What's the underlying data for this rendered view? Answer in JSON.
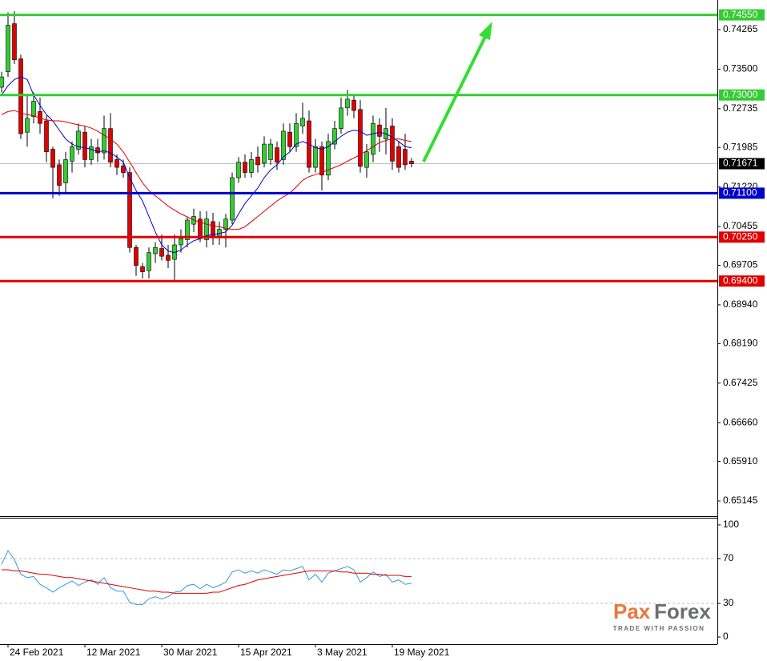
{
  "chart_data": [
    {
      "type": "candlestick",
      "categories": [
        null,
        "24 Feb 2021",
        null,
        null,
        null,
        null,
        null,
        null,
        null,
        null,
        null,
        null,
        null,
        "12 Mar 2021",
        null,
        null,
        null,
        null,
        null,
        null,
        null,
        null,
        null,
        null,
        null,
        "30 Mar 2021",
        null,
        null,
        null,
        null,
        null,
        null,
        null,
        null,
        null,
        null,
        null,
        "15 Apr 2021",
        null,
        null,
        null,
        null,
        null,
        null,
        null,
        null,
        null,
        null,
        null,
        "3 May 2021",
        null,
        null,
        null,
        null,
        null,
        null,
        null,
        null,
        null,
        null,
        null,
        "19 May 2021",
        null,
        null,
        null
      ],
      "ohlc": {
        "open": [
          0.7315,
          0.7345,
          0.7438,
          0.737,
          0.7228,
          0.7258,
          0.7268,
          0.725,
          0.7195,
          0.7165,
          0.713,
          0.7172,
          0.7195,
          0.7228,
          0.7175,
          0.7198,
          0.7188,
          0.7235,
          0.7175,
          0.7163,
          0.715,
          0.7005,
          0.6968,
          0.696,
          0.6993,
          0.7003,
          0.699,
          0.6982,
          0.701,
          0.702,
          0.705,
          0.706,
          0.702,
          0.7055,
          0.7025,
          0.704,
          0.7058,
          0.714,
          0.717,
          0.715,
          0.718,
          0.7168,
          0.7175,
          0.7198,
          0.7175,
          0.7228,
          0.72,
          0.724,
          0.725,
          0.716,
          0.72,
          0.7145,
          0.7205,
          0.7235,
          0.7275,
          0.729,
          0.7272,
          0.716,
          0.7185,
          0.7242,
          0.7215,
          0.724,
          0.72,
          0.7195,
          0.7172
        ],
        "high": [
          0.7345,
          0.746,
          0.7462,
          0.7378,
          0.73,
          0.7305,
          0.7295,
          0.726,
          0.72,
          0.7175,
          0.719,
          0.721,
          0.7245,
          0.724,
          0.7215,
          0.7215,
          0.726,
          0.7265,
          0.7185,
          0.7175,
          0.716,
          0.701,
          0.6975,
          0.7005,
          0.7015,
          0.703,
          0.701,
          0.703,
          0.704,
          0.7065,
          0.708,
          0.7075,
          0.7075,
          0.7072,
          0.7055,
          0.707,
          0.715,
          0.718,
          0.7185,
          0.719,
          0.72,
          0.722,
          0.7215,
          0.721,
          0.7245,
          0.7245,
          0.7265,
          0.7285,
          0.727,
          0.7215,
          0.721,
          0.7225,
          0.725,
          0.7295,
          0.731,
          0.73,
          0.729,
          0.7205,
          0.726,
          0.7255,
          0.7275,
          0.7255,
          0.721,
          0.7225,
          0.7178
        ],
        "low": [
          0.7305,
          0.7335,
          0.736,
          0.7215,
          0.72,
          0.7245,
          0.7225,
          0.717,
          0.71,
          0.7105,
          0.711,
          0.715,
          0.7185,
          0.716,
          0.7165,
          0.717,
          0.7175,
          0.716,
          0.7145,
          0.714,
          0.6995,
          0.695,
          0.6945,
          0.6945,
          0.6975,
          0.698,
          0.6965,
          0.6942,
          0.6995,
          0.7005,
          0.7035,
          0.7015,
          0.7005,
          0.701,
          0.701,
          0.7005,
          0.705,
          0.713,
          0.714,
          0.714,
          0.715,
          0.716,
          0.7165,
          0.7155,
          0.7165,
          0.719,
          0.719,
          0.7225,
          0.715,
          0.715,
          0.7115,
          0.7135,
          0.7195,
          0.7225,
          0.726,
          0.7255,
          0.715,
          0.714,
          0.717,
          0.719,
          0.7185,
          0.7155,
          0.715,
          0.7155,
          0.716
        ],
        "close": [
          0.7335,
          0.7435,
          0.7368,
          0.7225,
          0.7255,
          0.7288,
          0.7245,
          0.719,
          0.716,
          0.7125,
          0.7175,
          0.72,
          0.723,
          0.7175,
          0.72,
          0.7188,
          0.7235,
          0.717,
          0.716,
          0.715,
          0.7005,
          0.697,
          0.6958,
          0.6995,
          0.7005,
          0.6988,
          0.698,
          0.701,
          0.7022,
          0.7058,
          0.7065,
          0.7022,
          0.706,
          0.7025,
          0.704,
          0.706,
          0.714,
          0.717,
          0.715,
          0.7175,
          0.7165,
          0.7205,
          0.7205,
          0.717,
          0.723,
          0.72,
          0.7245,
          0.7255,
          0.716,
          0.72,
          0.7145,
          0.721,
          0.7235,
          0.7275,
          0.7292,
          0.727,
          0.7162,
          0.719,
          0.7245,
          0.722,
          0.7235,
          0.7172,
          0.716,
          0.7165,
          0.71671
        ]
      },
      "up_color": "#33cc33",
      "down_color": "#e00000",
      "lines": [
        {
          "color": "#0000cc",
          "values": [
            0.73,
            0.7318,
            0.733,
            0.7335,
            0.733,
            0.73,
            0.728,
            0.7262,
            0.725,
            0.7232,
            0.7215,
            0.7205,
            0.72,
            0.7198,
            0.7195,
            0.719,
            0.7192,
            0.7188,
            0.718,
            0.717,
            0.714,
            0.7115,
            0.7095,
            0.7065,
            0.7035,
            0.701,
            0.6998,
            0.6995,
            0.7,
            0.701,
            0.7018,
            0.7022,
            0.7028,
            0.703,
            0.7032,
            0.7035,
            0.7048,
            0.707,
            0.709,
            0.7105,
            0.712,
            0.714,
            0.7155,
            0.7165,
            0.718,
            0.719,
            0.7205,
            0.721,
            0.7205,
            0.7198,
            0.7195,
            0.72,
            0.721,
            0.722,
            0.7228,
            0.7232,
            0.723,
            0.7222,
            0.7225,
            0.7228,
            0.7225,
            0.7218,
            0.721,
            0.72,
            0.7198
          ]
        },
        {
          "color": "#e00000",
          "values": [
            0.7262,
            0.7268,
            0.727,
            0.7265,
            0.7262,
            0.726,
            0.7255,
            0.7252,
            0.725,
            0.725,
            0.7248,
            0.7245,
            0.7242,
            0.724,
            0.7236,
            0.723,
            0.7222,
            0.7215,
            0.7205,
            0.719,
            0.717,
            0.715,
            0.713,
            0.7115,
            0.7105,
            0.7095,
            0.7085,
            0.7077,
            0.707,
            0.7064,
            0.7058,
            0.7054,
            0.705,
            0.7047,
            0.7045,
            0.7042,
            0.704,
            0.704,
            0.7045,
            0.7055,
            0.7065,
            0.7075,
            0.7085,
            0.7095,
            0.7103,
            0.711,
            0.7122,
            0.7135,
            0.7142,
            0.7146,
            0.715,
            0.7155,
            0.716,
            0.7165,
            0.7172,
            0.7178,
            0.7185,
            0.7192,
            0.72,
            0.7208,
            0.7212,
            0.7215,
            0.7215,
            0.7212,
            0.721
          ]
        }
      ],
      "levels": [
        {
          "value": 0.7455,
          "label": "0.74550",
          "color": "#33cc33"
        },
        {
          "value": 0.73,
          "label": "0.73000",
          "color": "#33cc33"
        },
        {
          "value": 0.711,
          "label": "0.71100",
          "color": "#0000cc"
        },
        {
          "value": 0.7025,
          "label": "0.70250",
          "color": "#e00000"
        },
        {
          "value": 0.694,
          "label": "0.69400",
          "color": "#e00000"
        }
      ],
      "current_price": {
        "value": 0.71671,
        "color": "#000000"
      },
      "ylim": [
        0.64851,
        0.74838
      ],
      "yticks": [
        0.74265,
        {
          "value": 0.735,
          "label": "0.73500"
        },
        0.72735,
        0.71985,
        {
          "value": 0.7122,
          "label": "0.71220"
        },
        0.70455,
        0.69705,
        {
          "value": 0.6894,
          "label": "0.68940"
        },
        {
          "value": 0.6819,
          "label": "0.68190"
        },
        0.67425,
        {
          "value": 0.6666,
          "label": "0.66660"
        },
        {
          "value": 0.6591,
          "label": "0.65910"
        },
        0.65145
      ]
    },
    {
      "type": "line",
      "series": [
        {
          "color": "#3399dd",
          "values": [
            65,
            77,
            69,
            56,
            53,
            54,
            47,
            44,
            40,
            44,
            47,
            50,
            46,
            49,
            51,
            47,
            53,
            44,
            41,
            41,
            31,
            29,
            29,
            34,
            36,
            34,
            36,
            40,
            41,
            46,
            47,
            43,
            47,
            44,
            46,
            49,
            58,
            60,
            57,
            59,
            57,
            60,
            58,
            56,
            60,
            59,
            61,
            63,
            51,
            56,
            49,
            57,
            59,
            61,
            63,
            60,
            49,
            53,
            58,
            54,
            56,
            49,
            51,
            47,
            48
          ]
        },
        {
          "color": "#e00000",
          "values": [
            60,
            60,
            59,
            59,
            58,
            57,
            56,
            56,
            55,
            54,
            53,
            53,
            52,
            51,
            50,
            49,
            48,
            47,
            46,
            45,
            44,
            43,
            42,
            41,
            41,
            40,
            40,
            39,
            39,
            39,
            39,
            39,
            39,
            40,
            40,
            42,
            44,
            46,
            47,
            49,
            51,
            52,
            53,
            54,
            55,
            56,
            57,
            58,
            59,
            59,
            59,
            59,
            59,
            58,
            58,
            57,
            57,
            57,
            56,
            56,
            55,
            55,
            55,
            54,
            54
          ]
        }
      ],
      "reference_lines": [
        70,
        30
      ],
      "ylim": [
        -6.4,
        106.4
      ],
      "yticks": [
        100,
        70,
        30,
        0
      ]
    }
  ],
  "logo": {
    "left": "Pax",
    "right": "Forex",
    "tagline": "TRADE WITH PASSION"
  }
}
